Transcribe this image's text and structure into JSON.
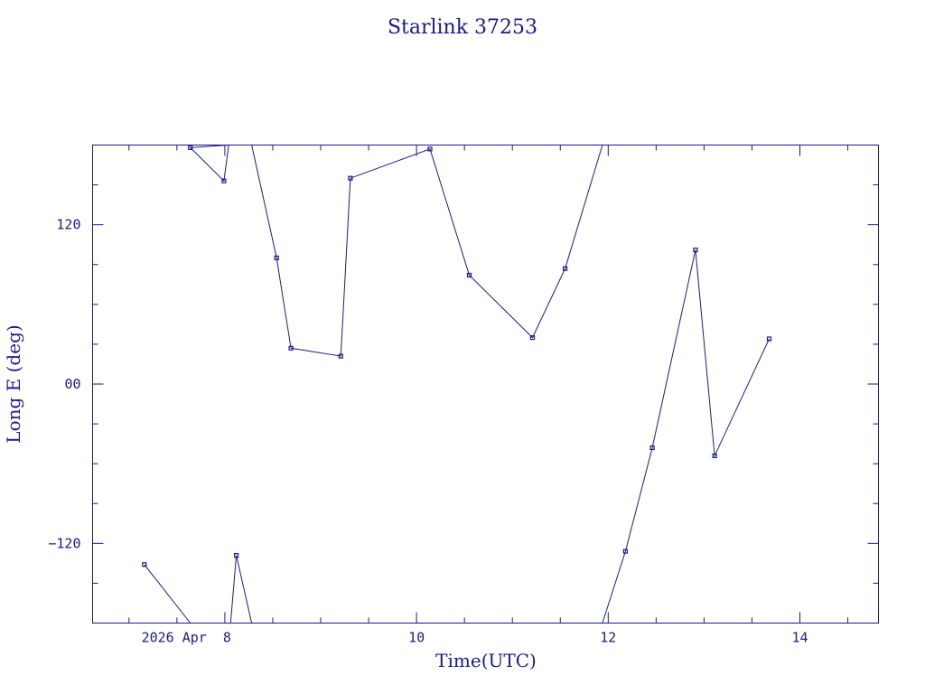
{
  "chart_data": {
    "type": "line",
    "title": "Starlink 37253",
    "xlabel": "Time(UTC)",
    "ylabel": "Long E (deg)",
    "x_unit": "days of April 2026 (UTC)",
    "xlim": [
      6.62,
      14.82
    ],
    "ylim": [
      -180,
      180
    ],
    "x_ticks": [
      {
        "value": 8,
        "label": "2026 Apr  8"
      },
      {
        "value": 10,
        "label": "10"
      },
      {
        "value": 12,
        "label": "12"
      },
      {
        "value": 14,
        "label": "14"
      }
    ],
    "y_ticks": [
      {
        "value": 120,
        "label": "120"
      },
      {
        "value": 0,
        "label": "00"
      },
      {
        "value": -120,
        "label": "−120"
      }
    ],
    "grid": false,
    "color": "#1a1a8c",
    "series": [
      {
        "points": [
          [
            7.16,
            -136
          ],
          [
            7.64,
            -180
          ]
        ]
      },
      {
        "points": [
          [
            8.04,
            180
          ],
          [
            7.64,
            178
          ],
          [
            7.99,
            153
          ],
          [
            8.04,
            180
          ]
        ]
      },
      {
        "points": [
          [
            8.06,
            -180
          ],
          [
            8.12,
            -129
          ],
          [
            8.28,
            -180
          ]
        ]
      },
      {
        "points": [
          [
            8.28,
            180
          ],
          [
            8.54,
            95
          ],
          [
            8.69,
            27
          ],
          [
            9.21,
            21
          ],
          [
            9.31,
            155
          ],
          [
            10.14,
            177
          ],
          [
            10.55,
            82
          ],
          [
            11.21,
            35
          ],
          [
            11.55,
            87
          ],
          [
            11.94,
            180
          ]
        ]
      },
      {
        "points": [
          [
            11.94,
            -180
          ],
          [
            12.18,
            -126
          ],
          [
            12.46,
            -48
          ],
          [
            12.91,
            101
          ],
          [
            13.11,
            -54
          ],
          [
            13.68,
            34
          ]
        ]
      }
    ]
  }
}
